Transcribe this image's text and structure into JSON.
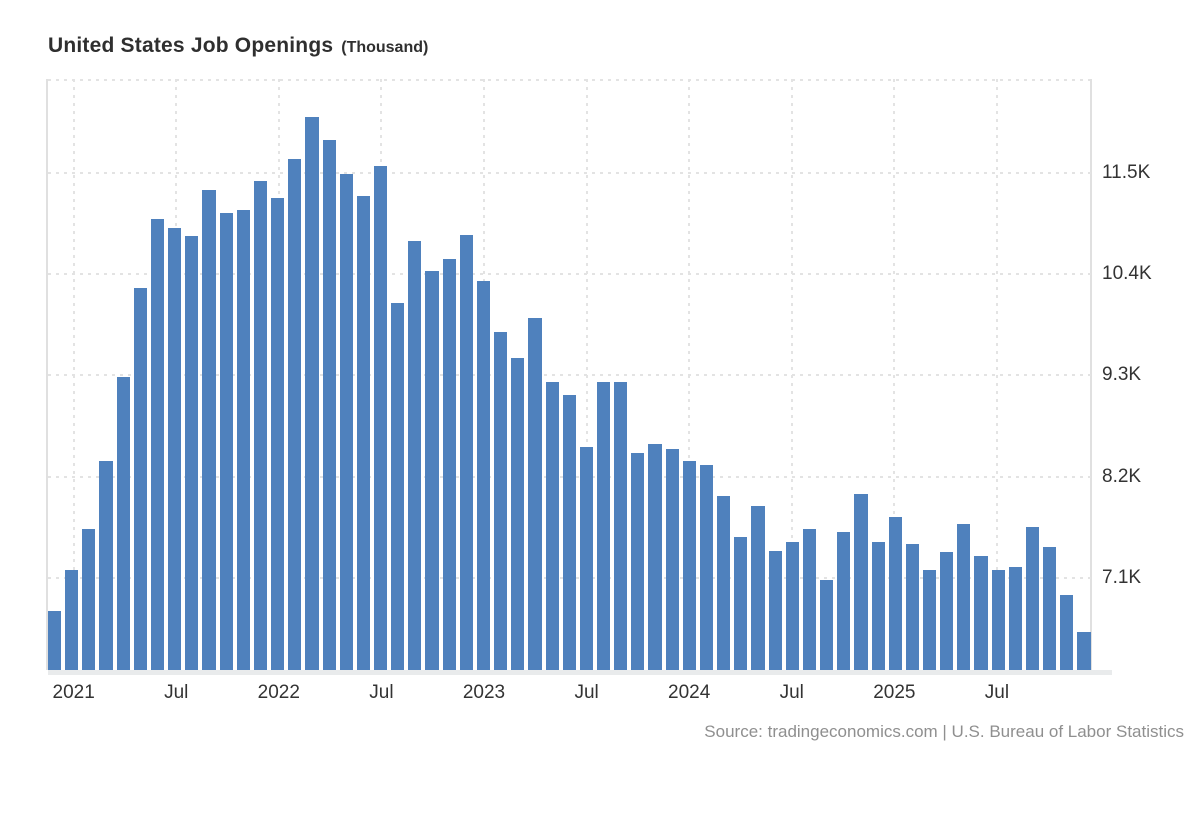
{
  "title": {
    "main": "United States Job Openings",
    "unit": "(Thousand)"
  },
  "source_note": "Source: tradingeconomics.com | U.S. Bureau of Labor Statistics",
  "colors": {
    "bar": "#4f81bd",
    "title_text": "#2f2f2f",
    "axis_label_text": "#333333",
    "source_text": "#8f8f8f",
    "gridline": "#e3e3e3",
    "spine": "#e0e0e0",
    "axis_line": "#e9ebec",
    "background": "#ffffff"
  },
  "chart_data": {
    "type": "bar",
    "title": "United States Job Openings",
    "unit_label": "(Thousand)",
    "xlabel": "",
    "ylabel": "Thousand",
    "ylim": [
      6100,
      12520
    ],
    "grid": "dotted",
    "legend": "none",
    "bar_color": "#4f81bd",
    "x": [
      "Dec 2020",
      "Jan 2021",
      "Feb 2021",
      "Mar 2021",
      "Apr 2021",
      "May 2021",
      "Jun 2021",
      "Jul 2021",
      "Aug 2021",
      "Sep 2021",
      "Oct 2021",
      "Nov 2021",
      "Dec 2021",
      "Jan 2022",
      "Feb 2022",
      "Mar 2022",
      "Apr 2022",
      "May 2022",
      "Jun 2022",
      "Jul 2022",
      "Aug 2022",
      "Sep 2022",
      "Oct 2022",
      "Nov 2022",
      "Dec 2022",
      "Jan 2023",
      "Feb 2023",
      "Mar 2023",
      "Apr 2023",
      "May 2023",
      "Jun 2023",
      "Jul 2023",
      "Aug 2023",
      "Sep 2023",
      "Oct 2023",
      "Nov 2023",
      "Dec 2023",
      "Jan 2024",
      "Feb 2024",
      "Mar 2024",
      "Apr 2024",
      "May 2024",
      "Jun 2024",
      "Jul 2024",
      "Aug 2024",
      "Sep 2024",
      "Oct 2024",
      "Nov 2024",
      "Dec 2024",
      "Jan 2025",
      "Feb 2025",
      "Mar 2025",
      "Apr 2025",
      "May 2025",
      "Jun 2025",
      "Jul 2025",
      "Aug 2025",
      "Sep 2025",
      "Oct 2025",
      "Nov 2025",
      "Dec 2025"
    ],
    "values": [
      6740,
      7190,
      7630,
      8370,
      9280,
      10250,
      11000,
      10900,
      10820,
      11310,
      11070,
      11100,
      11410,
      11230,
      11650,
      12110,
      11860,
      11490,
      11250,
      11580,
      10090,
      10760,
      10430,
      10560,
      10830,
      10330,
      9770,
      9490,
      9920,
      9230,
      9090,
      8520,
      9230,
      9230,
      8460,
      8560,
      8500,
      8370,
      8330,
      7990,
      7550,
      7880,
      7390,
      7490,
      7630,
      7080,
      7600,
      8010,
      7490,
      7760,
      7470,
      7190,
      7380,
      7690,
      7340,
      7190,
      7220,
      7650,
      7440,
      6910,
      6510
    ],
    "y_ticks": [
      {
        "label": "11.5K",
        "value": 11500
      },
      {
        "label": "10.4K",
        "value": 10400
      },
      {
        "label": "9.3K",
        "value": 9300
      },
      {
        "label": "8.2K",
        "value": 8200
      },
      {
        "label": "7.1K",
        "value": 7100
      }
    ],
    "x_ticks": [
      {
        "index": 1,
        "label": "2021"
      },
      {
        "index": 7,
        "label": "Jul"
      },
      {
        "index": 13,
        "label": "2022"
      },
      {
        "index": 19,
        "label": "Jul"
      },
      {
        "index": 25,
        "label": "2023"
      },
      {
        "index": 31,
        "label": "Jul"
      },
      {
        "index": 37,
        "label": "2024"
      },
      {
        "index": 43,
        "label": "Jul"
      },
      {
        "index": 49,
        "label": "2025"
      },
      {
        "index": 55,
        "label": "Jul"
      }
    ],
    "source": "Source: tradingeconomics.com | U.S. Bureau of Labor Statistics"
  }
}
